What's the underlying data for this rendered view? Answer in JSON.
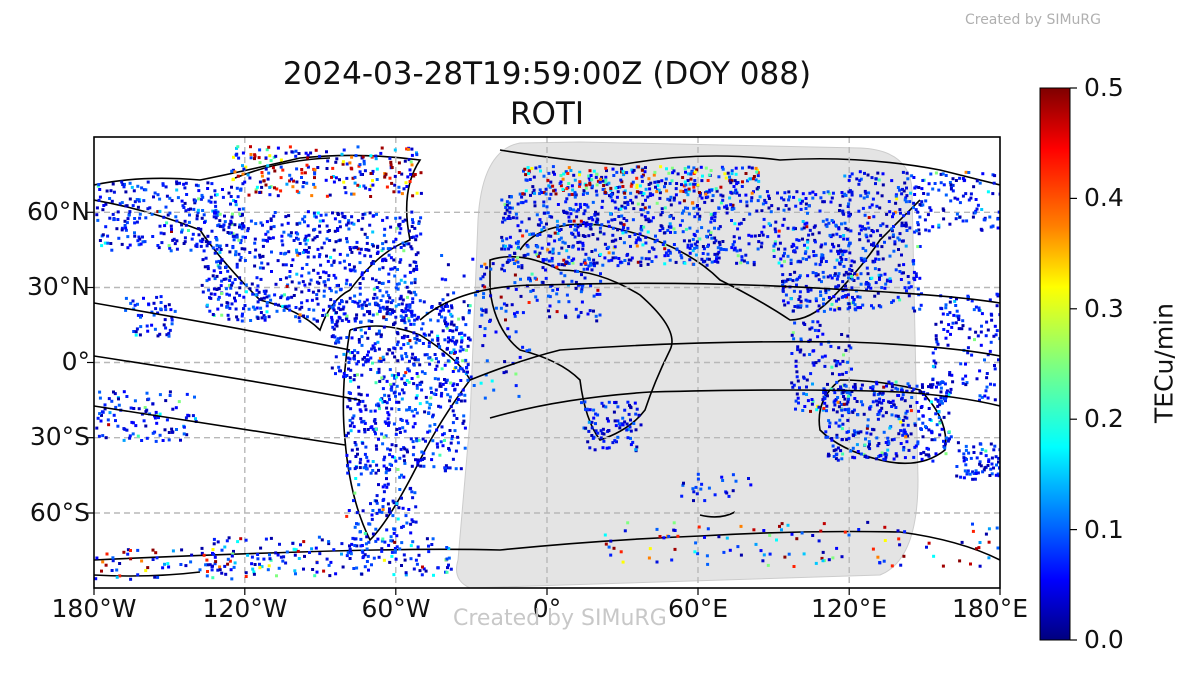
{
  "watermark_top": "Created by SIMuRG",
  "watermark_bottom": "Created by SIMuRG",
  "title_line1": "2024-03-28T19:59:00Z (DOY 088)",
  "title_line2": "ROTI",
  "lat_ticks": [
    "60°N",
    "30°N",
    "0°",
    "30°S",
    "60°S"
  ],
  "lon_ticks": [
    "180°W",
    "120°W",
    "60°W",
    "0°",
    "60°E",
    "120°E",
    "180°E"
  ],
  "colorbar": {
    "label": "TECu/min",
    "ticks": [
      "0.5",
      "0.4",
      "0.3",
      "0.2",
      "0.1",
      "0.0"
    ],
    "min": 0.0,
    "max": 0.5,
    "colormap": [
      "#00007f",
      "#0000ff",
      "#007fff",
      "#00ffff",
      "#7fff7f",
      "#ffff00",
      "#ff7f00",
      "#ff0000",
      "#7f0000"
    ]
  },
  "map": {
    "projection": "equirectangular",
    "lon_range": [
      -180,
      180
    ],
    "lat_range": [
      -90,
      90
    ],
    "gridlines": "dashed",
    "night_shade_color": "#e4e4e4"
  }
}
